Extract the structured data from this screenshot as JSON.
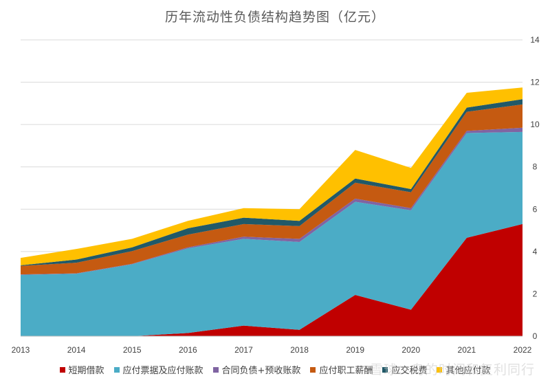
{
  "chart_data": {
    "type": "area",
    "stacked": true,
    "title": "历年流动性负债结构趋势图（亿元）",
    "x": [
      "2013",
      "2014",
      "2015",
      "2016",
      "2017",
      "2018",
      "2019",
      "2020",
      "2021",
      "2022"
    ],
    "y_ticks": [
      "0",
      "2",
      "4",
      "6",
      "8",
      "10",
      "12",
      "14"
    ],
    "ylim": [
      0,
      14
    ],
    "y_axis_position": "right",
    "grid": true,
    "legend_position": "bottom",
    "series": [
      {
        "name": "短期借款",
        "color": "#C00000",
        "values": [
          0,
          0,
          0,
          0.15,
          0.5,
          0.3,
          1.95,
          1.25,
          4.65,
          5.3
        ]
      },
      {
        "name": "应付票据及应付账款",
        "color": "#4BACC6",
        "values": [
          2.9,
          2.95,
          3.4,
          4.0,
          4.1,
          4.15,
          4.4,
          4.7,
          4.95,
          4.35
        ]
      },
      {
        "name": "合同负债+预收账款",
        "color": "#8064A2",
        "values": [
          0.02,
          0.02,
          0.02,
          0.05,
          0.1,
          0.15,
          0.15,
          0.1,
          0.1,
          0.2
        ]
      },
      {
        "name": "应付职工薪酬",
        "color": "#C55A11",
        "values": [
          0.4,
          0.5,
          0.6,
          0.6,
          0.6,
          0.6,
          0.75,
          0.75,
          0.9,
          1.1
        ]
      },
      {
        "name": "应交税费",
        "color": "#215968",
        "values": [
          0.03,
          0.15,
          0.18,
          0.3,
          0.3,
          0.25,
          0.2,
          0.15,
          0.2,
          0.25
        ]
      },
      {
        "name": "其他应付款",
        "color": "#FFC000",
        "values": [
          0.35,
          0.5,
          0.4,
          0.35,
          0.45,
          0.55,
          1.35,
          1.0,
          0.7,
          0.55
        ]
      }
    ]
  },
  "watermark": "雪球：乌的时间和复利同行"
}
